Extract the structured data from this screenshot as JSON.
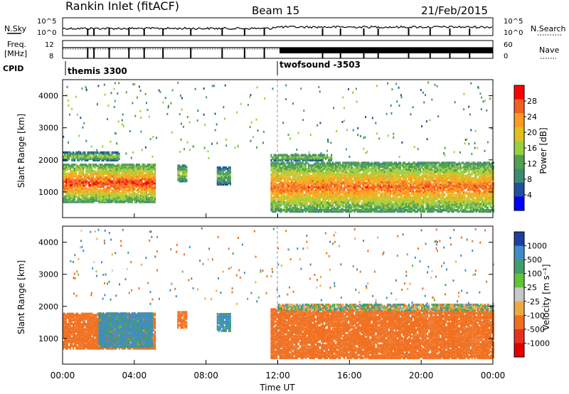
{
  "header": {
    "title": "Rankin Inlet (fitACF)",
    "beam": "Beam 15",
    "date": "21/Feb/2015"
  },
  "top_panels": {
    "nsky_label": "N.Sky",
    "nsky_ticks": [
      "10^5",
      "10^0"
    ],
    "nsearch_label": "N.Search",
    "nsearch_ticks": [
      "10^5",
      "10^0"
    ],
    "freq_label": "Freq.",
    "freq_unit": "[MHz]",
    "freq_ticks": [
      "12",
      "8"
    ],
    "nave_label": "Nave",
    "nave_ticks": [
      "60",
      "0"
    ],
    "cpid_label": "CPID",
    "cpid_programs": [
      "themis 3300",
      "twofsound -3503"
    ]
  },
  "chart_data": [
    {
      "type": "heatmap",
      "name": "power",
      "ylabel": "Slant Range [km]",
      "y_ticks": [
        "1000",
        "2000",
        "3000",
        "4000"
      ],
      "ylim": [
        200,
        4500
      ],
      "colorbar_label": "Power [dB]",
      "colorbar_ticks": [
        "28",
        "24",
        "20",
        "16",
        "12",
        "8",
        "4"
      ],
      "colorbar_colors": [
        "#ff0000",
        "#f06020",
        "#ff9a20",
        "#e0c020",
        "#9ad040",
        "#50a050",
        "#3a8c70",
        "#2050a0",
        "#0000ff"
      ],
      "echo_bands": [
        {
          "start_h": 0.0,
          "end_h": 5.2,
          "range_km": [
            650,
            1850
          ],
          "core_db": 26
        },
        {
          "start_h": 0.0,
          "end_h": 3.2,
          "range_km": [
            1950,
            2200
          ],
          "core_db": 14
        },
        {
          "start_h": 6.4,
          "end_h": 6.9,
          "range_km": [
            1300,
            1800
          ],
          "core_db": 16
        },
        {
          "start_h": 8.6,
          "end_h": 9.4,
          "range_km": [
            1200,
            1750
          ],
          "core_db": 12
        },
        {
          "start_h": 11.6,
          "end_h": 24.0,
          "range_km": [
            350,
            1900
          ],
          "core_db": 24
        },
        {
          "start_h": 11.6,
          "end_h": 15.0,
          "range_km": [
            1950,
            2150
          ],
          "core_db": 14
        }
      ]
    },
    {
      "type": "heatmap",
      "name": "velocity",
      "xlabel": "Time UT",
      "ylabel": "Slant Range [km]",
      "x_ticks": [
        "00:00",
        "04:00",
        "08:00",
        "12:00",
        "16:00",
        "20:00",
        "00:00"
      ],
      "y_ticks": [
        "1000",
        "2000",
        "3000",
        "4000"
      ],
      "xlim": [
        0,
        24
      ],
      "ylim": [
        200,
        4500
      ],
      "colorbar_label": "Velocity [m s⁻¹]",
      "colorbar_ticks": [
        "1000",
        "500",
        "100",
        "25",
        "-25",
        "-100",
        "-500",
        "-1000"
      ],
      "colorbar_colors": [
        "#1d3fa0",
        "#3f8cc8",
        "#3f9f6a",
        "#62c23a",
        "#c8c8c8",
        "#f0a840",
        "#f07020",
        "#e83020",
        "#e00000"
      ],
      "echo_bands": [
        {
          "start_h": 0.0,
          "end_h": 5.2,
          "range_km": [
            650,
            1750
          ],
          "velocity": -300
        },
        {
          "start_h": 2.0,
          "end_h": 5.0,
          "range_km": [
            700,
            1750
          ],
          "velocity": 150
        },
        {
          "start_h": 6.4,
          "end_h": 6.9,
          "range_km": [
            1300,
            1800
          ],
          "velocity": -200
        },
        {
          "start_h": 8.6,
          "end_h": 9.4,
          "range_km": [
            1200,
            1750
          ],
          "velocity": 150
        },
        {
          "start_h": 11.6,
          "end_h": 24.0,
          "range_km": [
            350,
            1900
          ],
          "velocity": -300
        },
        {
          "start_h": 12.0,
          "end_h": 24.0,
          "range_km": [
            1850,
            2050
          ],
          "velocity": 0
        }
      ]
    }
  ]
}
